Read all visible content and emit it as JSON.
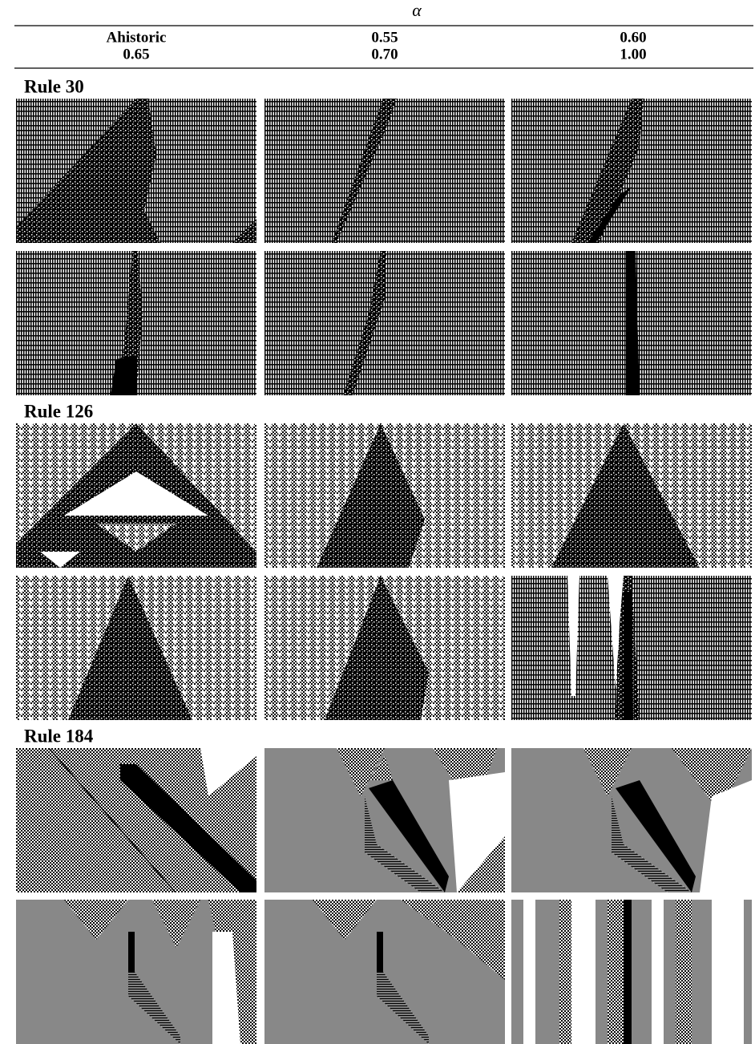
{
  "header": {
    "axis_label": "α",
    "rows": [
      [
        "Ahistoric",
        "0.55",
        "0.60"
      ],
      [
        "0.65",
        "0.70",
        "1.00"
      ]
    ]
  },
  "sections": [
    {
      "label": "Rule 30"
    },
    {
      "label": "Rule 126"
    },
    {
      "label": "Rule 184"
    }
  ]
}
